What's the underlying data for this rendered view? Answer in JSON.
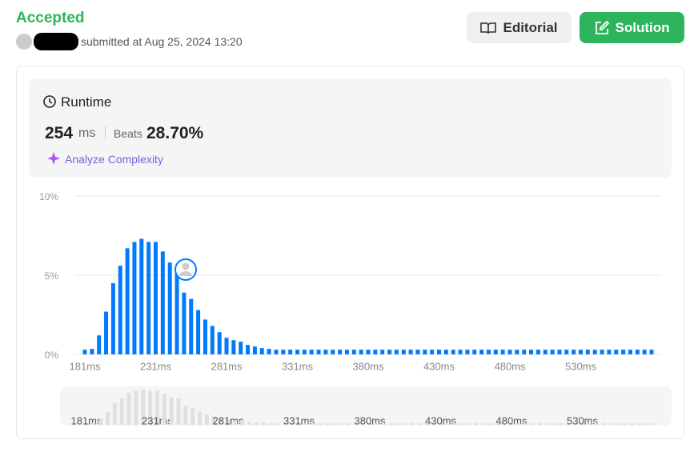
{
  "header": {
    "status": "Accepted",
    "submitted": "submitted at Aug 25, 2024 13:20",
    "buttons": [
      "Editorial",
      "Solution"
    ]
  },
  "runtime": {
    "title": "Runtime",
    "value": "254",
    "unit": "ms",
    "beats_label": "Beats",
    "beats": "28.70%",
    "analyze": "Analyze Complexity"
  },
  "chart_data": {
    "type": "bar",
    "color": "#007aff",
    "categories": [
      "181ms",
      null,
      null,
      null,
      null,
      null,
      null,
      null,
      null,
      null,
      "231ms",
      null,
      null,
      null,
      null,
      null,
      null,
      null,
      null,
      null,
      "281ms",
      null,
      null,
      null,
      null,
      null,
      null,
      null,
      null,
      null,
      "331ms",
      null,
      null,
      null,
      null,
      null,
      null,
      null,
      null,
      null,
      "380ms",
      null,
      null,
      null,
      null,
      null,
      null,
      null,
      null,
      null,
      "430ms",
      null,
      null,
      null,
      null,
      null,
      null,
      null,
      null,
      null,
      "480ms",
      null,
      null,
      null,
      null,
      null,
      null,
      null,
      null,
      null,
      "530ms",
      null,
      null,
      null,
      null,
      null,
      null,
      null,
      null,
      null,
      null
    ],
    "values": [
      0.3,
      0.35,
      1.2,
      2.7,
      4.5,
      5.6,
      6.7,
      7.1,
      7.3,
      7.1,
      7.1,
      6.5,
      5.8,
      5.5,
      3.9,
      3.5,
      2.8,
      2.2,
      1.8,
      1.4,
      1.05,
      0.9,
      0.8,
      0.6,
      0.5,
      0.4,
      0.35,
      0.3,
      0.3,
      0.3,
      0.3,
      0.3,
      0.3,
      0.3,
      0.3,
      0.3,
      0.3,
      0.3,
      0.3,
      0.3,
      0.3,
      0.3,
      0.3,
      0.3,
      0.3,
      0.3,
      0.3,
      0.3,
      0.3,
      0.3,
      0.3,
      0.3,
      0.3,
      0.3,
      0.3,
      0.3,
      0.3,
      0.3,
      0.3,
      0.3,
      0.3,
      0.3,
      0.3,
      0.3,
      0.3,
      0.3,
      0.3,
      0.3,
      0.3,
      0.3,
      0.3,
      0.3,
      0.3,
      0.3,
      0.3,
      0.3,
      0.3,
      0.3,
      0.3,
      0.3,
      0.3
    ],
    "ylim": [
      0,
      10
    ],
    "yticks": [
      {
        "value": 0,
        "label": "0%"
      },
      {
        "value": 5,
        "label": "5%"
      },
      {
        "value": 10,
        "label": "10%"
      }
    ],
    "grid": true
  }
}
